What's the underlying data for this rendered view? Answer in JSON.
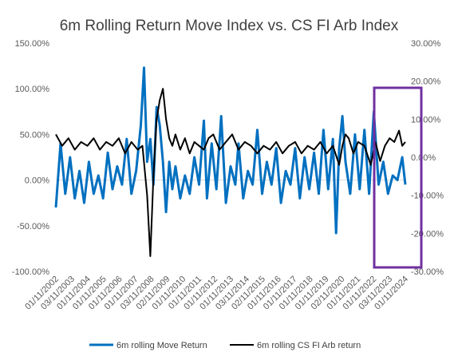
{
  "chart_data": {
    "type": "line",
    "title": "6m Rolling Return Move Index vs. CS FI Arb Index",
    "left_axis": {
      "ylim": [
        -100,
        150
      ],
      "ticks": [
        -100,
        -50,
        0,
        50,
        100,
        150
      ],
      "tick_labels": [
        "-100.00%",
        "-50.00%",
        "0.00%",
        "50.00%",
        "100.00%",
        "150.00%"
      ]
    },
    "right_axis": {
      "ylim": [
        -30,
        30
      ],
      "ticks": [
        -30,
        -20,
        -10,
        0,
        10,
        20,
        30
      ],
      "tick_labels": [
        "-30.00%",
        "-20.00%",
        "-10.00%",
        "0.00%",
        "10.00%",
        "20.00%",
        "30.00%"
      ]
    },
    "x_tick_labels": [
      "01/11/2002",
      "03/11/2003",
      "01/11/2004",
      "01/11/2005",
      "01/11/2006",
      "01/11/2007",
      "03/11/2008",
      "02/11/2009",
      "01/11/2010",
      "01/11/2011",
      "01/11/2012",
      "01/11/2013",
      "03/11/2014",
      "02/11/2015",
      "01/11/2016",
      "01/11/2017",
      "01/11/2018",
      "01/11/2019",
      "02/11/2020",
      "01/11/2021",
      "01/11/2022",
      "03/11/2023",
      "01/11/2024"
    ],
    "series": [
      {
        "name": "6m rolling Move Return",
        "axis": "left",
        "color": "#0070C0",
        "x": [
          2002.0,
          2002.3,
          2002.6,
          2002.9,
          2003.2,
          2003.5,
          2003.8,
          2004.1,
          2004.4,
          2004.7,
          2005.0,
          2005.3,
          2005.6,
          2005.9,
          2006.2,
          2006.5,
          2006.8,
          2007.1,
          2007.4,
          2007.6,
          2007.8,
          2008.0,
          2008.2,
          2008.4,
          2008.6,
          2008.8,
          2009.0,
          2009.2,
          2009.4,
          2009.6,
          2009.9,
          2010.2,
          2010.5,
          2010.8,
          2011.1,
          2011.4,
          2011.6,
          2011.9,
          2012.2,
          2012.5,
          2012.8,
          2013.1,
          2013.4,
          2013.6,
          2013.9,
          2014.2,
          2014.5,
          2014.8,
          2015.1,
          2015.4,
          2015.7,
          2016.0,
          2016.3,
          2016.6,
          2016.9,
          2017.2,
          2017.5,
          2017.8,
          2018.1,
          2018.4,
          2018.7,
          2019.0,
          2019.3,
          2019.6,
          2019.8,
          2020.0,
          2020.2,
          2020.4,
          2020.7,
          2021.0,
          2021.3,
          2021.6,
          2021.9,
          2022.2,
          2022.5,
          2022.8,
          2023.1,
          2023.4,
          2023.7,
          2024.0,
          2024.2
        ],
        "values": [
          -30,
          40,
          -15,
          25,
          -20,
          10,
          -25,
          20,
          -15,
          5,
          -20,
          30,
          -10,
          15,
          -5,
          45,
          -15,
          10,
          60,
          123,
          20,
          45,
          -5,
          80,
          60,
          20,
          -35,
          20,
          -10,
          15,
          -20,
          5,
          -15,
          25,
          -5,
          65,
          -20,
          40,
          -10,
          70,
          -25,
          15,
          -5,
          40,
          -20,
          10,
          -5,
          55,
          -15,
          20,
          -5,
          35,
          -25,
          10,
          -5,
          35,
          -20,
          25,
          -10,
          30,
          -15,
          55,
          -10,
          45,
          -58,
          35,
          70,
          20,
          -15,
          50,
          -10,
          55,
          -15,
          75,
          -5,
          20,
          -15,
          5,
          0,
          25,
          -5
        ]
      },
      {
        "name": "6m rolling CS FI Arb return",
        "axis": "right",
        "color": "#000000",
        "x": [
          2002.0,
          2002.4,
          2002.8,
          2003.2,
          2003.6,
          2004.0,
          2004.4,
          2004.8,
          2005.2,
          2005.6,
          2006.0,
          2006.4,
          2006.8,
          2007.2,
          2007.5,
          2007.8,
          2008.0,
          2008.2,
          2008.4,
          2008.6,
          2008.8,
          2009.0,
          2009.2,
          2009.4,
          2009.6,
          2009.9,
          2010.2,
          2010.5,
          2010.8,
          2011.1,
          2011.4,
          2011.7,
          2012.0,
          2012.4,
          2012.8,
          2013.2,
          2013.6,
          2014.0,
          2014.4,
          2014.8,
          2015.2,
          2015.6,
          2016.0,
          2016.4,
          2016.8,
          2017.2,
          2017.6,
          2018.0,
          2018.4,
          2018.8,
          2019.2,
          2019.6,
          2020.0,
          2020.2,
          2020.4,
          2020.6,
          2020.9,
          2021.2,
          2021.6,
          2022.0,
          2022.3,
          2022.6,
          2022.9,
          2023.2,
          2023.5,
          2023.8,
          2024.0,
          2024.2
        ],
        "values": [
          6,
          3,
          5,
          2,
          4,
          3,
          5,
          2,
          4,
          3,
          5,
          1,
          4,
          2,
          3,
          -10,
          -26,
          -5,
          10,
          15,
          18,
          10,
          5,
          3,
          6,
          2,
          5,
          1,
          4,
          3,
          2,
          5,
          6,
          2,
          4,
          6,
          2,
          4,
          3,
          1,
          3,
          2,
          4,
          1,
          3,
          4,
          1,
          3,
          2,
          4,
          1,
          3,
          -2,
          3,
          6,
          5,
          1,
          4,
          3,
          -2,
          4,
          -1,
          3,
          5,
          4,
          7,
          3,
          4
        ]
      }
    ],
    "legend": {
      "position": "bottom"
    },
    "grid": false,
    "annotation": {
      "type": "rectangle",
      "color": "#7030A0"
    }
  }
}
